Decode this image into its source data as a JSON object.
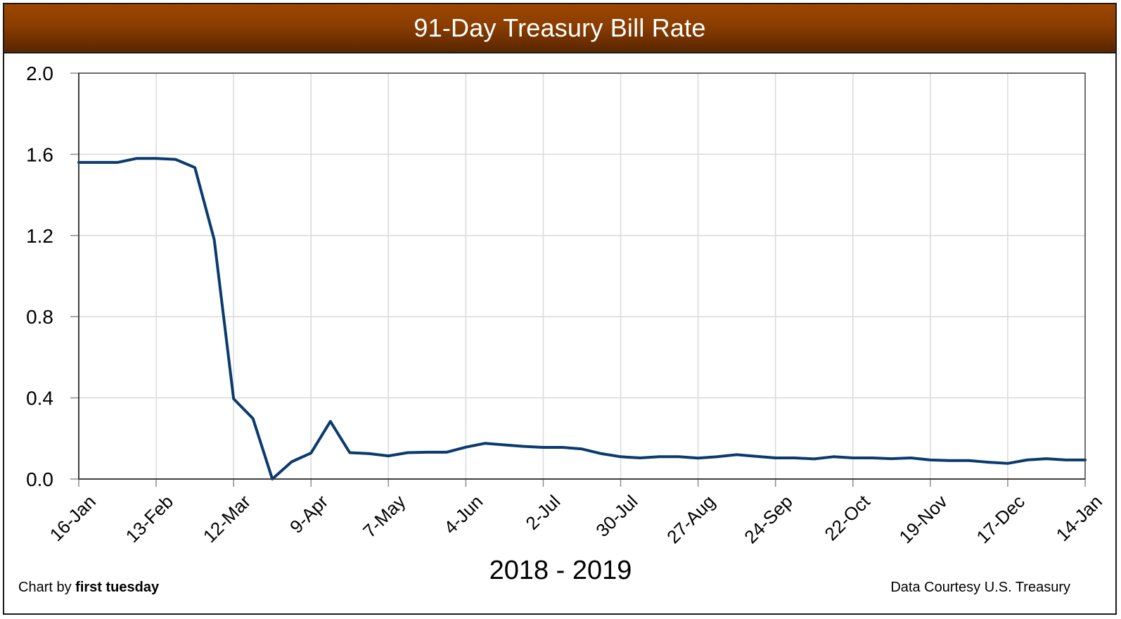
{
  "header": {
    "title": "91-Day Treasury Bill Rate"
  },
  "footer": {
    "year_range": "2018 - 2019",
    "credit_prefix": "Chart by ",
    "credit_brand": "first tuesday",
    "source": "Data Courtesy U.S. Treasury"
  },
  "colors": {
    "header_top": "#9e4600",
    "header_bottom": "#5a2600",
    "line": "#0a3a6e",
    "grid": "#d9d9d9",
    "axis": "#404040"
  },
  "chart_data": {
    "type": "line",
    "title": "91-Day Treasury Bill Rate",
    "xlabel": "2018 - 2019",
    "ylabel": "",
    "ylim": [
      0.0,
      2.0
    ],
    "yticks": [
      "0.0",
      "0.4",
      "0.8",
      "1.2",
      "1.6",
      "2.0"
    ],
    "ytick_values": [
      0.0,
      0.4,
      0.8,
      1.2,
      1.6,
      2.0
    ],
    "xtick_labels": [
      "16-Jan",
      "13-Feb",
      "12-Mar",
      "9-Apr",
      "7-May",
      "4-Jun",
      "2-Jul",
      "30-Jul",
      "27-Aug",
      "24-Sep",
      "22-Oct",
      "19-Nov",
      "17-Dec",
      "14-Jan"
    ],
    "xtick_every_n_points": 4,
    "grid": true,
    "legend": null,
    "x": [
      "16-Jan",
      "23-Jan",
      "30-Jan",
      "6-Feb",
      "13-Feb",
      "20-Feb",
      "27-Feb",
      "5-Mar",
      "12-Mar",
      "19-Mar",
      "26-Mar",
      "2-Apr",
      "9-Apr",
      "16-Apr",
      "23-Apr",
      "30-Apr",
      "7-May",
      "14-May",
      "21-May",
      "28-May",
      "4-Jun",
      "11-Jun",
      "18-Jun",
      "25-Jun",
      "2-Jul",
      "9-Jul",
      "16-Jul",
      "23-Jul",
      "30-Jul",
      "6-Aug",
      "13-Aug",
      "20-Aug",
      "27-Aug",
      "3-Sep",
      "10-Sep",
      "17-Sep",
      "24-Sep",
      "1-Oct",
      "8-Oct",
      "15-Oct",
      "22-Oct",
      "29-Oct",
      "5-Nov",
      "12-Nov",
      "19-Nov",
      "26-Nov",
      "3-Dec",
      "10-Dec",
      "17-Dec",
      "24-Dec",
      "31-Dec",
      "7-Jan",
      "14-Jan"
    ],
    "series": [
      {
        "name": "91-Day Treasury Bill Rate",
        "values": [
          1.56,
          1.56,
          1.56,
          1.58,
          1.58,
          1.575,
          1.535,
          1.18,
          0.395,
          0.298,
          0.0,
          0.085,
          0.128,
          0.284,
          0.13,
          0.125,
          0.114,
          0.13,
          0.132,
          0.132,
          0.157,
          0.176,
          0.168,
          0.161,
          0.156,
          0.156,
          0.148,
          0.125,
          0.11,
          0.104,
          0.11,
          0.11,
          0.103,
          0.11,
          0.12,
          0.112,
          0.104,
          0.104,
          0.099,
          0.11,
          0.104,
          0.104,
          0.1,
          0.104,
          0.094,
          0.091,
          0.091,
          0.083,
          0.077,
          0.094,
          0.1,
          0.094,
          0.094
        ]
      }
    ]
  }
}
